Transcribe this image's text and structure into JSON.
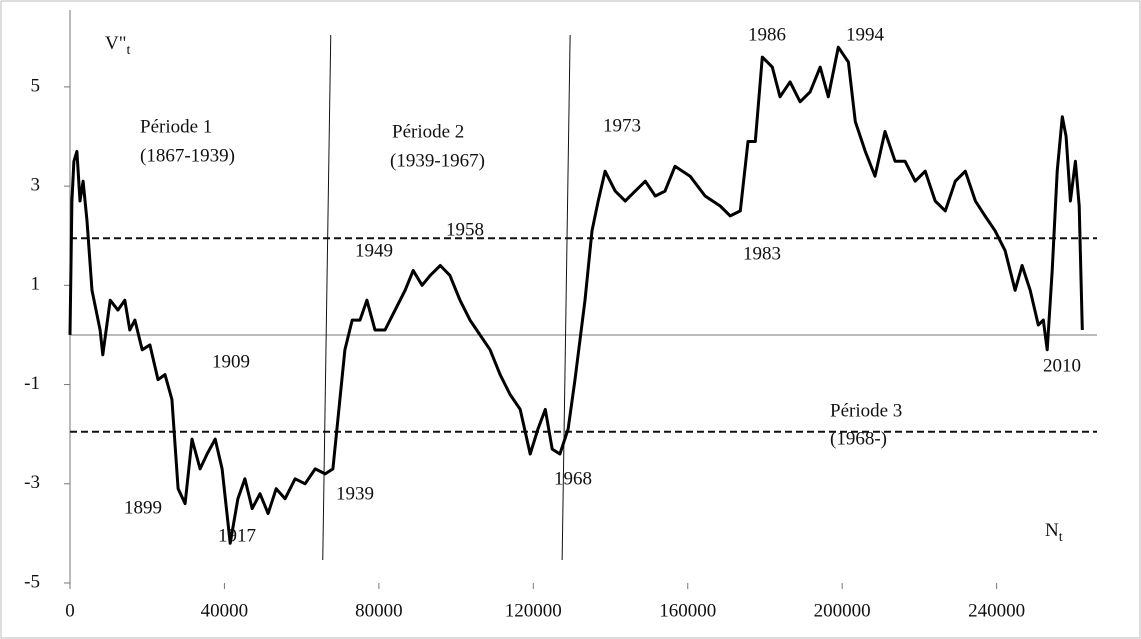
{
  "chart_data": {
    "type": "line",
    "y_label": {
      "main": "V\"",
      "sub": "t"
    },
    "x_label": {
      "main": "N",
      "sub": "t"
    },
    "xlim": [
      0,
      266000
    ],
    "ylim": [
      -5,
      6.55
    ],
    "xticks": [
      0,
      40000,
      80000,
      120000,
      160000,
      200000,
      240000
    ],
    "yticks": [
      -5,
      -3,
      -1,
      1,
      3,
      5
    ],
    "reference_lines": [
      1.95,
      -1.95
    ],
    "period_lines": [
      66500,
      128500
    ],
    "annotations": [
      "Période 1",
      "(1867-1939)",
      "Période 2",
      "(1939-1967)",
      "Période 3",
      "(1968-)",
      "1909",
      "1899",
      "1917",
      "1939",
      "1949",
      "1958",
      "1968",
      "1973",
      "1983",
      "1986",
      "1994",
      "2010"
    ],
    "series": [
      {
        "color": "#000000",
        "x": [
          0,
          500,
          1000,
          1800,
          2600,
          3400,
          4400,
          5700,
          7800,
          8500,
          10400,
          12400,
          14200,
          15500,
          16800,
          18700,
          20700,
          22800,
          24600,
          26400,
          28000,
          29800,
          31600,
          33700,
          35500,
          37600,
          39400,
          41500,
          43500,
          45300,
          47200,
          49200,
          51300,
          53400,
          55700,
          58300,
          60900,
          63500,
          66100,
          68100,
          69900,
          71200,
          73100,
          75100,
          76900,
          79000,
          81600,
          84200,
          86800,
          88900,
          91200,
          93300,
          95900,
          98400,
          101000,
          103600,
          106200,
          108800,
          111400,
          114000,
          116600,
          119200,
          121200,
          123100,
          124900,
          126900,
          129000,
          130800,
          133400,
          135200,
          136800,
          138600,
          141200,
          143800,
          146400,
          149000,
          151600,
          154100,
          156700,
          160600,
          164500,
          168400,
          171000,
          173600,
          175600,
          177500,
          179300,
          181900,
          183900,
          186500,
          189100,
          191700,
          194300,
          196400,
          199000,
          201600,
          203400,
          206000,
          208500,
          211100,
          213700,
          216300,
          218900,
          221500,
          224100,
          226700,
          229300,
          231900,
          234500,
          237000,
          239600,
          242200,
          244800,
          246600,
          248700,
          250800,
          252100,
          253100,
          254400,
          255700,
          257000,
          258000,
          259100,
          260400,
          261400,
          262200
        ],
        "values": [
          0,
          2.7,
          3.5,
          3.7,
          2.7,
          3.1,
          2.3,
          0.9,
          0.1,
          -0.4,
          0.7,
          0.5,
          0.7,
          0.1,
          0.3,
          -0.3,
          -0.2,
          -0.9,
          -0.8,
          -1.3,
          -3.1,
          -3.4,
          -2.1,
          -2.7,
          -2.4,
          -2.1,
          -2.7,
          -4.2,
          -3.3,
          -2.9,
          -3.5,
          -3.2,
          -3.6,
          -3.1,
          -3.3,
          -2.9,
          -3.0,
          -2.7,
          -2.8,
          -2.7,
          -1.3,
          -0.3,
          0.3,
          0.3,
          0.7,
          0.1,
          0.1,
          0.5,
          0.9,
          1.3,
          1.0,
          1.2,
          1.4,
          1.2,
          0.7,
          0.3,
          0.0,
          -0.3,
          -0.8,
          -1.2,
          -1.5,
          -2.4,
          -1.9,
          -1.5,
          -2.3,
          -2.4,
          -1.9,
          -0.9,
          0.7,
          2.1,
          2.7,
          3.3,
          2.9,
          2.7,
          2.9,
          3.1,
          2.8,
          2.9,
          3.4,
          3.2,
          2.8,
          2.6,
          2.4,
          2.5,
          3.9,
          3.9,
          5.6,
          5.4,
          4.8,
          5.1,
          4.7,
          4.9,
          5.4,
          4.8,
          5.8,
          5.5,
          4.3,
          3.7,
          3.2,
          4.1,
          3.5,
          3.5,
          3.1,
          3.3,
          2.7,
          2.5,
          3.1,
          3.3,
          2.7,
          2.4,
          2.1,
          1.7,
          0.9,
          1.4,
          0.9,
          0.2,
          0.3,
          -0.3,
          1.3,
          3.3,
          4.4,
          4.0,
          2.7,
          3.5,
          2.6,
          0.1
        ]
      }
    ]
  }
}
